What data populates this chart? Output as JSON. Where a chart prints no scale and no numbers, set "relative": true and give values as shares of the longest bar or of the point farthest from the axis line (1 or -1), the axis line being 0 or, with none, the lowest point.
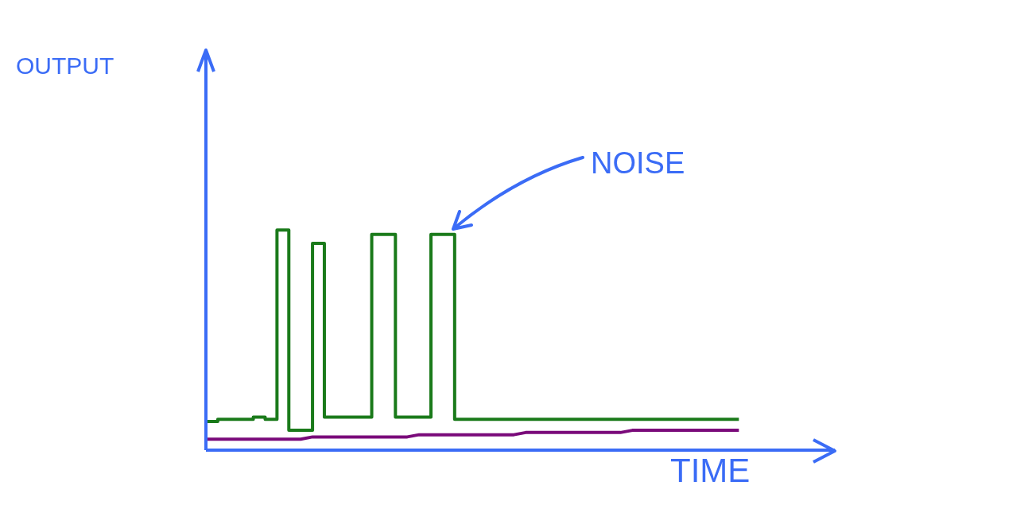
{
  "chart_data": {
    "type": "step",
    "relative": true,
    "xlabel": "TIME",
    "annotations": [
      "OUTPUT",
      "NOISE"
    ],
    "categories": [
      null,
      null,
      null,
      null,
      null,
      null,
      null,
      null,
      null,
      null,
      null,
      null,
      null,
      null,
      null,
      null,
      null,
      null,
      null,
      null,
      null,
      null,
      null,
      null,
      null,
      null,
      null,
      null,
      null,
      null,
      null,
      null,
      null,
      null,
      null,
      null,
      null,
      null,
      null,
      null,
      null,
      null,
      null,
      null,
      null,
      null
    ],
    "series": [
      {
        "color": "#1a7a1a",
        "values": [
          0.13,
          0.14,
          0.14,
          0.14,
          0.15,
          0.14,
          1,
          0.09,
          0.09,
          0.94,
          0.15,
          0.15,
          0.15,
          0.15,
          0.98,
          0.98,
          0.15,
          0.15,
          0.15,
          0.98,
          0.98,
          0.14,
          0.14,
          0.14,
          0.14,
          0.14,
          0.14,
          0.14,
          0.14,
          0.14,
          0.14,
          0.14,
          0.14,
          0.14,
          0.14,
          0.14,
          0.14,
          0.14,
          0.14,
          0.14,
          0.14,
          0.14,
          0.14,
          0.14,
          0.14,
          0.14
        ]
      },
      {
        "type": "line",
        "color": "#7a0a7a",
        "values": [
          0.05,
          0.05,
          0.05,
          0.05,
          0.05,
          0.05,
          0.05,
          0.05,
          0.05,
          0.06,
          0.06,
          0.06,
          0.06,
          0.06,
          0.06,
          0.06,
          0.06,
          0.06,
          0.07,
          0.07,
          0.07,
          0.07,
          0.07,
          0.07,
          0.07,
          0.07,
          0.07,
          0.08,
          0.08,
          0.08,
          0.08,
          0.08,
          0.08,
          0.08,
          0.08,
          0.08,
          0.09,
          0.09,
          0.09,
          0.09,
          0.09,
          0.09,
          0.09,
          0.09,
          0.09,
          0.09
        ]
      }
    ]
  }
}
